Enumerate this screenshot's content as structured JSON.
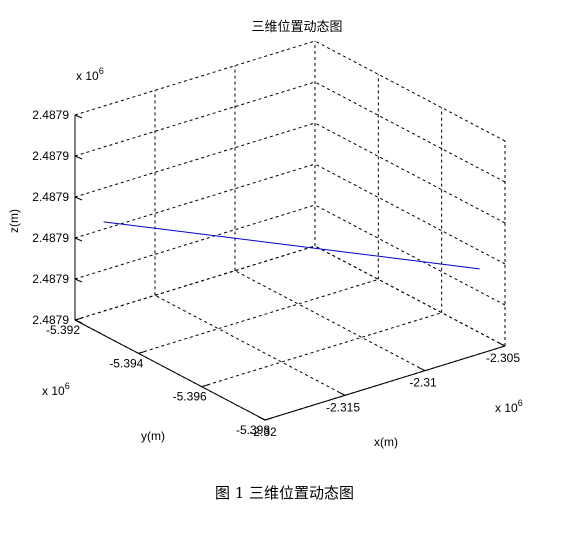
{
  "figure": {
    "caption": "图 1 三维位置动态图"
  },
  "chart_data": {
    "type": "line",
    "title": "三维位置动态图",
    "xlabel": "x(m)",
    "ylabel": "y(m)",
    "zlabel": "z(m)",
    "x_exponent_label": "x 10",
    "x_exponent_power": "6",
    "y_exponent_label": "x 10",
    "y_exponent_power": "6",
    "z_exponent_label": "x 10",
    "z_exponent_power": "6",
    "xlim": [
      -2.32,
      -2.305
    ],
    "ylim": [
      -5.398,
      -5.392
    ],
    "x_ticks": [
      -2.32,
      -2.315,
      -2.31,
      -2.305
    ],
    "x_tick_labels": [
      "-2.32",
      "-2.315",
      "-2.31",
      "-2.305"
    ],
    "y_ticks": [
      -5.398,
      -5.396,
      -5.394,
      -5.392
    ],
    "y_tick_labels": [
      "-5.398",
      "-5.396",
      "-5.394",
      "-5.392"
    ],
    "z_tick_labels": [
      "2.4879",
      "2.4879",
      "2.4879",
      "2.4879",
      "2.4879",
      "2.4879"
    ],
    "grid": true,
    "line_color": "#0000cc",
    "series": [
      {
        "x": [
          -2.3192,
          -2.3056
        ],
        "y": [
          -5.3925,
          -5.3975
        ],
        "z_level": [
          0.5,
          0.35
        ]
      }
    ]
  }
}
